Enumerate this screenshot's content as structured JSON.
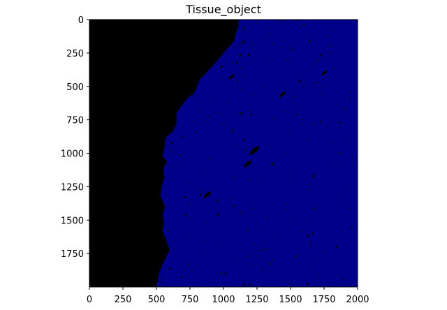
{
  "chart_data": {
    "type": "heatmap",
    "title": "Tissue_object",
    "xlabel": "",
    "ylabel": "",
    "xlim": [
      0,
      2000
    ],
    "ylim": [
      2000,
      0
    ],
    "x_ticks": [
      0,
      250,
      500,
      750,
      1000,
      1250,
      1500,
      1750,
      2000
    ],
    "y_ticks": [
      0,
      250,
      500,
      750,
      1000,
      1250,
      1500,
      1750
    ],
    "x_tick_labels": [
      "0",
      "250",
      "500",
      "750",
      "1000",
      "1250",
      "1500",
      "1750",
      "2000"
    ],
    "y_tick_labels": [
      "0",
      "250",
      "500",
      "750",
      "1000",
      "1250",
      "1500",
      "1750"
    ],
    "grid": false,
    "colors": {
      "background": "#000000",
      "tissue": "#00008b"
    },
    "tissue_boundary": [
      [
        1110,
        0
      ],
      [
        1115,
        40
      ],
      [
        1090,
        110
      ],
      [
        1080,
        160
      ],
      [
        1010,
        240
      ],
      [
        960,
        300
      ],
      [
        890,
        380
      ],
      [
        830,
        440
      ],
      [
        810,
        480
      ],
      [
        790,
        540
      ],
      [
        740,
        580
      ],
      [
        690,
        640
      ],
      [
        650,
        700
      ],
      [
        650,
        780
      ],
      [
        620,
        840
      ],
      [
        570,
        880
      ],
      [
        560,
        960
      ],
      [
        545,
        1020
      ],
      [
        580,
        1060
      ],
      [
        550,
        1120
      ],
      [
        560,
        1180
      ],
      [
        540,
        1240
      ],
      [
        530,
        1320
      ],
      [
        565,
        1400
      ],
      [
        545,
        1460
      ],
      [
        555,
        1520
      ],
      [
        545,
        1580
      ],
      [
        570,
        1640
      ],
      [
        600,
        1720
      ],
      [
        580,
        1760
      ],
      [
        550,
        1820
      ],
      [
        520,
        1900
      ],
      [
        500,
        2000
      ]
    ]
  }
}
